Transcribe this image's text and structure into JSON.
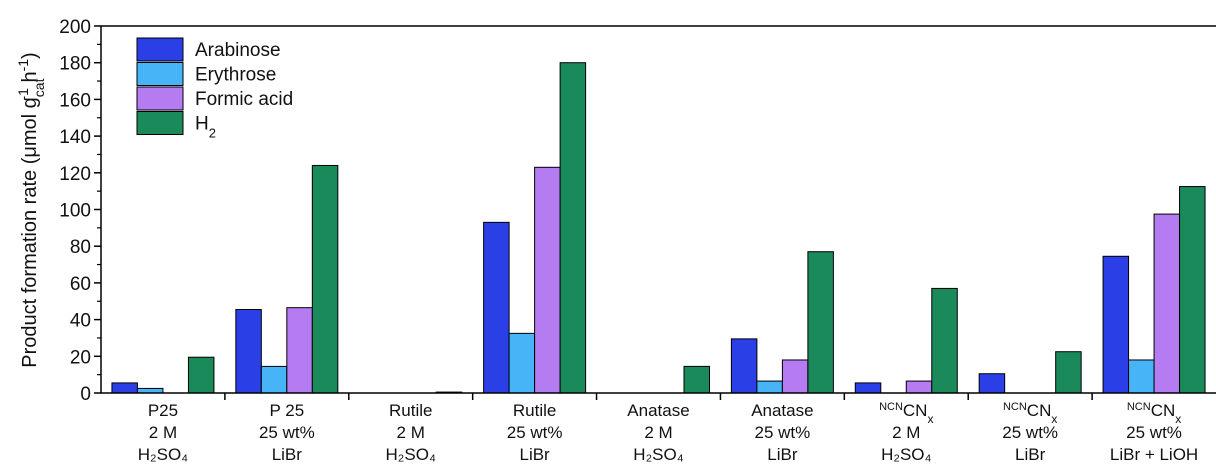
{
  "chart_data": {
    "type": "bar",
    "ylabel": "Product formation rate (μmol g",
    "ylabel_sub": "cat",
    "ylabel_sup1": "-1",
    "ylabel_mid": " h",
    "ylabel_sup2": "-1",
    "ylabel_end": ")",
    "ylim": [
      0,
      200
    ],
    "yticks": [
      "0",
      "20",
      "40",
      "60",
      "80",
      "100",
      "120",
      "140",
      "160",
      "180",
      "200"
    ],
    "yticks_num": [
      0,
      20,
      40,
      60,
      80,
      100,
      120,
      140,
      160,
      180,
      200
    ],
    "grid": false,
    "legend_position": "top-left",
    "categories": [
      {
        "line1": "P25",
        "line2": "2 M",
        "line3": "H₂SO₄"
      },
      {
        "line1": "P 25",
        "line2": "25 wt%",
        "line3": "LiBr"
      },
      {
        "line1": "Rutile",
        "line2": "2 M",
        "line3": "H₂SO₄"
      },
      {
        "line1": "Rutile",
        "line2": "25 wt%",
        "line3": "LiBr"
      },
      {
        "line1": "Anatase",
        "line2": "2 M",
        "line3": "H₂SO₄"
      },
      {
        "line1": "Anatase",
        "line2": "25 wt%",
        "line3": "LiBr"
      },
      {
        "line1_pre": "NCN",
        "line1_main": "CN",
        "line1_sub": "x",
        "line2": "2 M",
        "line3": "H₂SO₄"
      },
      {
        "line1_pre": "NCN",
        "line1_main": "CN",
        "line1_sub": "x",
        "line2": "25 wt%",
        "line3": "LiBr"
      },
      {
        "line1_pre": "NCN",
        "line1_main": "CN",
        "line1_sub": "x",
        "line2": "25 wt%",
        "line3": "LiBr + LiOH"
      }
    ],
    "series": [
      {
        "name": "Arabinose",
        "color": "#2b3fe6",
        "values": [
          5.5,
          45.5,
          0,
          93,
          0,
          29.5,
          5.5,
          10.5,
          74.5
        ]
      },
      {
        "name": "Erythrose",
        "color": "#47b4f7",
        "values": [
          2.5,
          14.5,
          0,
          32.5,
          0,
          6.5,
          0,
          0,
          18
        ]
      },
      {
        "name": "Formic acid",
        "color": "#b57bf0",
        "values": [
          0,
          46.5,
          0,
          123,
          0,
          18,
          6.5,
          0,
          97.5
        ]
      },
      {
        "name": "H",
        "name_sub": "2",
        "color": "#1a8a5a",
        "values": [
          19.5,
          124,
          0.5,
          180,
          14.5,
          77,
          57,
          22.5,
          112.5
        ]
      }
    ]
  }
}
